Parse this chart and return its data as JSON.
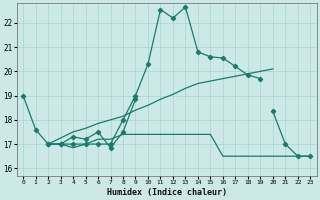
{
  "xlabel": "Humidex (Indice chaleur)",
  "bg_color": "#cce9e7",
  "line_color": "#1a7a6e",
  "grid_color": "#aad4d0",
  "xlim": [
    -0.5,
    23.5
  ],
  "ylim": [
    15.7,
    22.8
  ],
  "xticks": [
    0,
    1,
    2,
    3,
    4,
    5,
    6,
    7,
    8,
    9,
    10,
    11,
    12,
    13,
    14,
    15,
    16,
    17,
    18,
    19,
    20,
    21,
    22,
    23
  ],
  "yticks": [
    16,
    17,
    18,
    19,
    20,
    21,
    22
  ],
  "lines": [
    {
      "x": [
        0,
        1,
        2,
        3,
        4,
        5,
        6,
        7,
        8,
        9,
        10,
        11,
        12,
        13,
        14,
        15,
        16,
        17,
        18,
        19
      ],
      "y": [
        19.0,
        17.6,
        17.0,
        17.0,
        17.0,
        17.0,
        17.0,
        17.0,
        18.0,
        19.0,
        20.3,
        22.55,
        22.2,
        22.65,
        20.8,
        20.6,
        20.55,
        20.2,
        19.85,
        19.7
      ],
      "marker": true
    },
    {
      "x": [
        2,
        3,
        4,
        5,
        6,
        7,
        8,
        9
      ],
      "y": [
        17.0,
        17.0,
        17.3,
        17.2,
        17.5,
        16.85,
        17.5,
        18.85
      ],
      "marker": true,
      "extra_segment": {
        "x": [
          20,
          21,
          22,
          23
        ],
        "y": [
          18.35,
          17.0,
          16.5,
          16.5
        ]
      }
    },
    {
      "x": [
        2,
        3,
        4,
        5,
        6,
        7,
        8,
        9,
        10,
        11,
        12,
        13,
        14,
        15,
        16,
        17,
        18,
        19,
        20,
        21,
        22,
        23
      ],
      "y": [
        17.0,
        17.0,
        16.85,
        17.0,
        17.2,
        17.2,
        17.4,
        17.4,
        17.4,
        17.4,
        17.4,
        17.4,
        17.4,
        17.4,
        16.5,
        16.5,
        16.5,
        16.5,
        16.5,
        16.5,
        16.5,
        16.5
      ],
      "marker": false
    },
    {
      "x": [
        2,
        3,
        4,
        5,
        6,
        7,
        8,
        9,
        10,
        11,
        12,
        13,
        14,
        15,
        16,
        17,
        18,
        19,
        20
      ],
      "y": [
        17.0,
        17.25,
        17.5,
        17.65,
        17.85,
        18.0,
        18.15,
        18.4,
        18.6,
        18.85,
        19.05,
        19.3,
        19.5,
        19.6,
        19.7,
        19.8,
        19.9,
        20.0,
        20.1
      ],
      "marker": false
    }
  ]
}
